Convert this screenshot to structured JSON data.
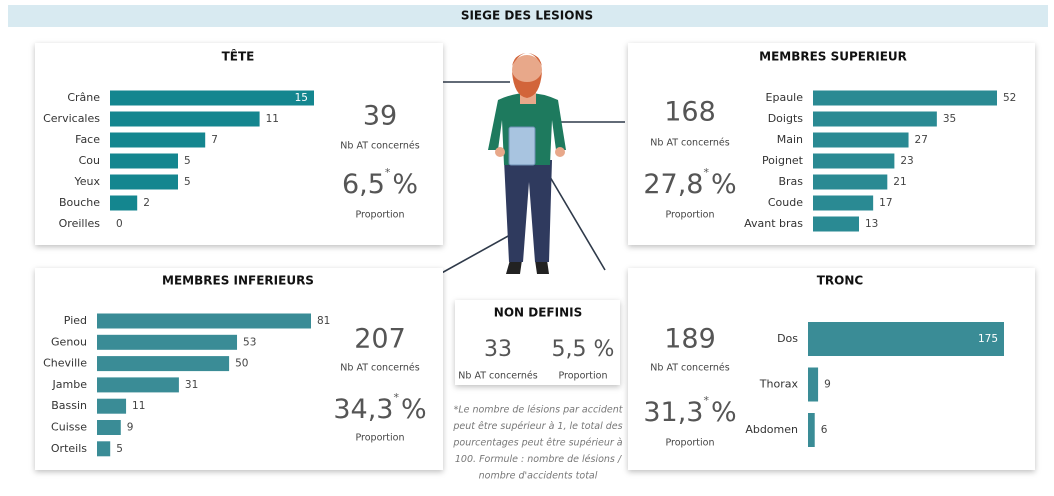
{
  "header": {
    "title": "SIEGE DES LESIONS"
  },
  "chart_data": [
    {
      "type": "bar",
      "orientation": "horizontal",
      "title": "TÊTE",
      "color": "#14868f",
      "max_label_inside": true,
      "categories": [
        "Crâne",
        "Cervicales",
        "Face",
        "Cou",
        "Yeux",
        "Bouche",
        "Oreilles"
      ],
      "values": [
        15,
        11,
        7,
        5,
        5,
        2,
        0
      ],
      "kpi": {
        "count": "39",
        "count_label": "Nb AT concernés",
        "proportion": "6,5",
        "asterisk": "*",
        "unit": "%",
        "proportion_label": "Proportion"
      }
    },
    {
      "type": "bar",
      "orientation": "horizontal",
      "title": "MEMBRES SUPERIEUR",
      "color": "#2a8a93",
      "max_label_inside": false,
      "categories": [
        "Epaule",
        "Doigts",
        "Main",
        "Poignet",
        "Bras",
        "Coude",
        "Avant bras"
      ],
      "values": [
        52,
        35,
        27,
        23,
        21,
        17,
        13
      ],
      "kpi": {
        "count": "168",
        "count_label": "Nb AT concernés",
        "proportion": "27,8",
        "asterisk": "*",
        "unit": "%",
        "proportion_label": "Proportion"
      }
    },
    {
      "type": "bar",
      "orientation": "horizontal",
      "title": "MEMBRES INFERIEURS",
      "color": "#3a8c96",
      "max_label_inside": false,
      "categories": [
        "Pied",
        "Genou",
        "Cheville",
        "Jambe",
        "Bassin",
        "Cuisse",
        "Orteils"
      ],
      "values": [
        81,
        53,
        50,
        31,
        11,
        9,
        5
      ],
      "kpi": {
        "count": "207",
        "count_label": "Nb AT concernés",
        "proportion": "34,3",
        "asterisk": "*",
        "unit": "%",
        "proportion_label": "Proportion"
      }
    },
    {
      "type": "bar",
      "orientation": "horizontal",
      "title": "TRONC",
      "color": "#3a8c96",
      "max_label_inside": true,
      "categories": [
        "Dos",
        "Thorax",
        "Abdomen"
      ],
      "values": [
        175,
        9,
        6
      ],
      "kpi": {
        "count": "189",
        "count_label": "Nb AT concernés",
        "proportion": "31,3",
        "asterisk": "*",
        "unit": "%",
        "proportion_label": "Proportion"
      }
    }
  ],
  "non_definis": {
    "title": "NON DEFINIS",
    "count": "33",
    "count_label": "Nb AT concernés",
    "proportion": "5,5 %",
    "proportion_label": "Proportion"
  },
  "footnote": [
    "*Le nombre de lésions par accident",
    "peut être supérieur à 1, le total des",
    "pourcentages peut être supérieur à",
    "100.  Formule : nombre de lésions /",
    "nombre d'accidents total"
  ]
}
